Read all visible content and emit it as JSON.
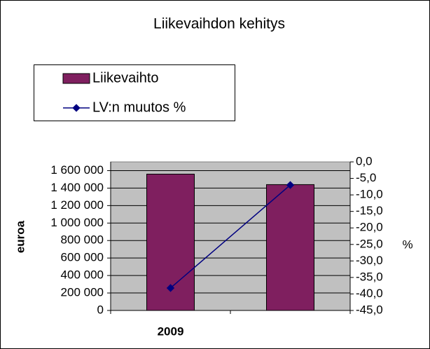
{
  "chart_data": {
    "type": "bar-line",
    "title": "Liikevaihdon kehitys",
    "y_label": "euroa",
    "y2_label": "%",
    "categories": [
      "2009",
      null
    ],
    "series": [
      {
        "name": "Liikevaihto",
        "type": "bar",
        "color": "#7f1f5f",
        "values": [
          1560000,
          1440000
        ]
      },
      {
        "name": "LV:n muutos %",
        "type": "line",
        "axis": "y2",
        "color": "#000080",
        "values": [
          -38.2,
          -7.0
        ]
      }
    ],
    "ylim": [
      0,
      1700000
    ],
    "yticks": [
      0,
      {
        "value": 200000,
        "label": "200 000"
      },
      {
        "value": 400000,
        "label": "400 000"
      },
      {
        "value": 600000,
        "label": "600 000"
      },
      {
        "value": 800000,
        "label": "800 000"
      },
      {
        "value": 1000000,
        "label": "1 000 000"
      },
      {
        "value": 1200000,
        "label": "1 200 000"
      },
      {
        "value": 1400000,
        "label": "1 400 000"
      },
      {
        "value": 1600000,
        "label": "1 600 000"
      }
    ],
    "y2lim": [
      -45,
      0
    ],
    "y2ticks": [
      {
        "value": 0,
        "label": "0,0"
      },
      {
        "value": -5,
        "label": "-5,0"
      },
      {
        "value": -10,
        "label": "-10,0"
      },
      {
        "value": -15,
        "label": "-15,0"
      },
      {
        "value": -20,
        "label": "-20,0"
      },
      {
        "value": -25,
        "label": "-25,0"
      },
      {
        "value": -30,
        "label": "-30,0"
      },
      {
        "value": -35,
        "label": "-35,0"
      },
      {
        "value": -40,
        "label": "-40,0"
      },
      {
        "value": -45,
        "label": "-45,0"
      }
    ],
    "grid": true,
    "plot_background": "#c0c0c0",
    "legend": "top-left"
  }
}
